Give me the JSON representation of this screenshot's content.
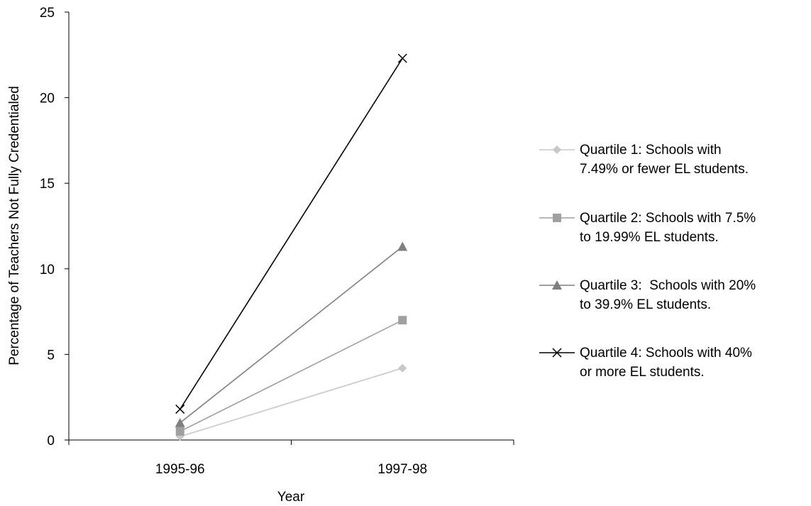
{
  "chart_data": {
    "type": "line",
    "title": "",
    "xlabel": "Year",
    "ylabel": "Percentage of Teachers Not Fully Credentialed",
    "categories": [
      "1995-96",
      "1997-98"
    ],
    "ylim": [
      0,
      25
    ],
    "yticks": [
      "0",
      "5",
      "10",
      "15",
      "20",
      "25"
    ],
    "grid": false,
    "legend_position": "right",
    "series": [
      {
        "name_lines": [
          "Quartile 1: Schools with",
          "7.49% or fewer EL students."
        ],
        "values": [
          0.2,
          4.2
        ],
        "marker": "diamond",
        "color": "#c8c8c8"
      },
      {
        "name_lines": [
          "Quartile 2: Schools with 7.5%",
          "to 19.99% EL students."
        ],
        "values": [
          0.5,
          7.0
        ],
        "marker": "square",
        "color": "#a0a0a0"
      },
      {
        "name_lines": [
          "Quartile 3:  Schools with 20%",
          "to 39.9% EL students."
        ],
        "values": [
          1.0,
          11.3
        ],
        "marker": "triangle",
        "color": "#7f7f7f"
      },
      {
        "name_lines": [
          "Quartile 4: Schools with 40%",
          "or more EL students."
        ],
        "values": [
          1.8,
          22.3
        ],
        "marker": "x",
        "color": "#000000"
      }
    ]
  }
}
